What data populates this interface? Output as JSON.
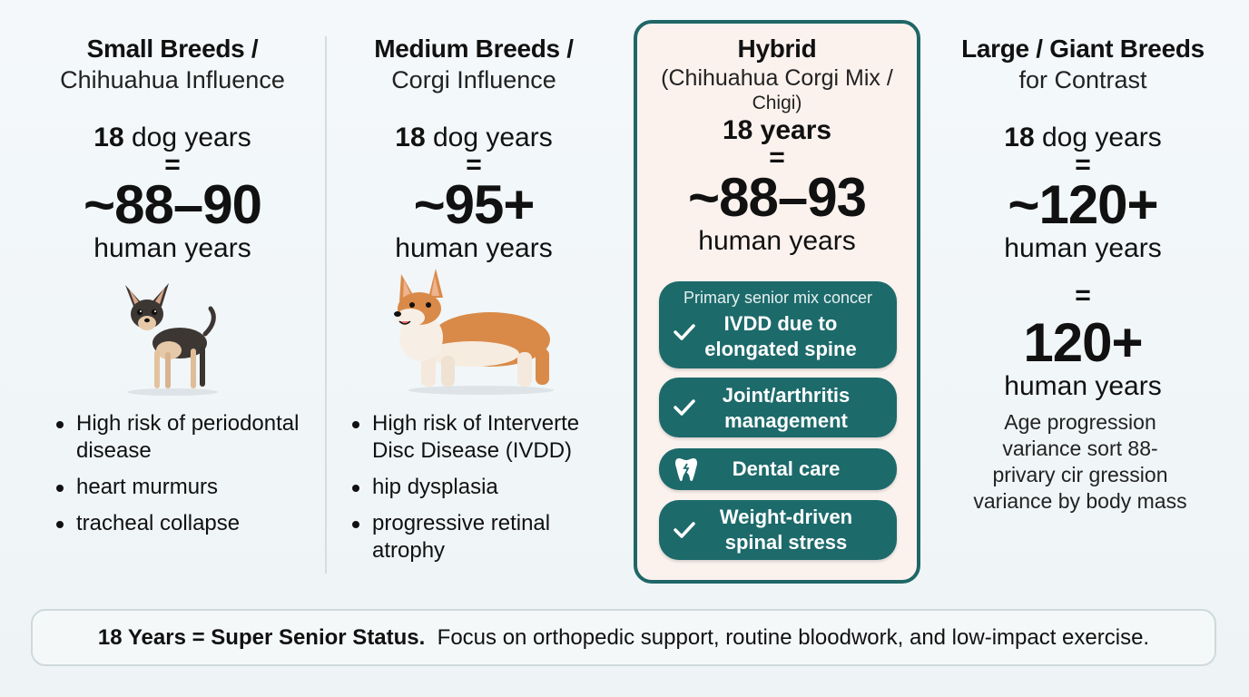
{
  "columns": [
    {
      "title_line1": "Small Breeds /",
      "title_line2": "Chihuahua Influence",
      "dog_years_num": "18",
      "dog_years_label": "dog years",
      "equals": "=",
      "human_years_value": "~88–90",
      "human_years_label": "human years",
      "illustration": "chihuahua-illustration",
      "bullets": [
        "High risk of periodontal disease",
        "heart murmurs",
        "tracheal collapse"
      ]
    },
    {
      "title_line1": "Medium Breeds /",
      "title_line2": "Corgi Influence",
      "dog_years_num": "18",
      "dog_years_label": "dog years",
      "equals": "=",
      "human_years_value": "~95+",
      "human_years_label": "human years",
      "illustration": "corgi-illustration",
      "bullets": [
        "High risk of  Interverte Disc Disease (IVDD)",
        "hip dysplasia",
        "progressive retinal atrophy"
      ]
    }
  ],
  "hybrid": {
    "title": "Hybrid",
    "subtitle_line1": "(Chihuahua Corgi Mix /",
    "subtitle_line2": "Chigi)",
    "years": "18 years",
    "equals": "=",
    "human_years_value": "~88–93",
    "human_years_label": "human years",
    "concern_header": "Primary senior mix concer",
    "concerns": [
      {
        "icon": "check-icon",
        "label_line1": "IVDD due to",
        "label_line2": "elongated spine"
      },
      {
        "icon": "check-icon",
        "label_line1": "Joint/arthritis",
        "label_line2": "management"
      },
      {
        "icon": "tooth-icon",
        "label_line1": "Dental care",
        "label_line2": ""
      },
      {
        "icon": "check-icon",
        "label_line1": "Weight-driven",
        "label_line2": "spinal stress"
      }
    ]
  },
  "large": {
    "title_line1": "Large / Giant Breeds",
    "title_line2": "for Contrast",
    "dog_years_num": "18",
    "dog_years_label": "dog years",
    "equals": "=",
    "human_years_value": "~120+",
    "human_years_label": "human years",
    "equals2": "=",
    "human_years_value2": "120+",
    "human_years_label2": "human years",
    "note_lines": [
      "Age progression",
      "variance sort 88-",
      "privary cir gression",
      "variance by body mass"
    ]
  },
  "footer": {
    "bold": "18 Years = Super Senior Status.",
    "text": "Focus on orthopedic support, routine bloodwork, and low-impact exercise."
  },
  "colors": {
    "accent_teal": "#1d6a6b",
    "hybrid_border": "#1f6667",
    "hybrid_bg": "#fbf2ee"
  }
}
